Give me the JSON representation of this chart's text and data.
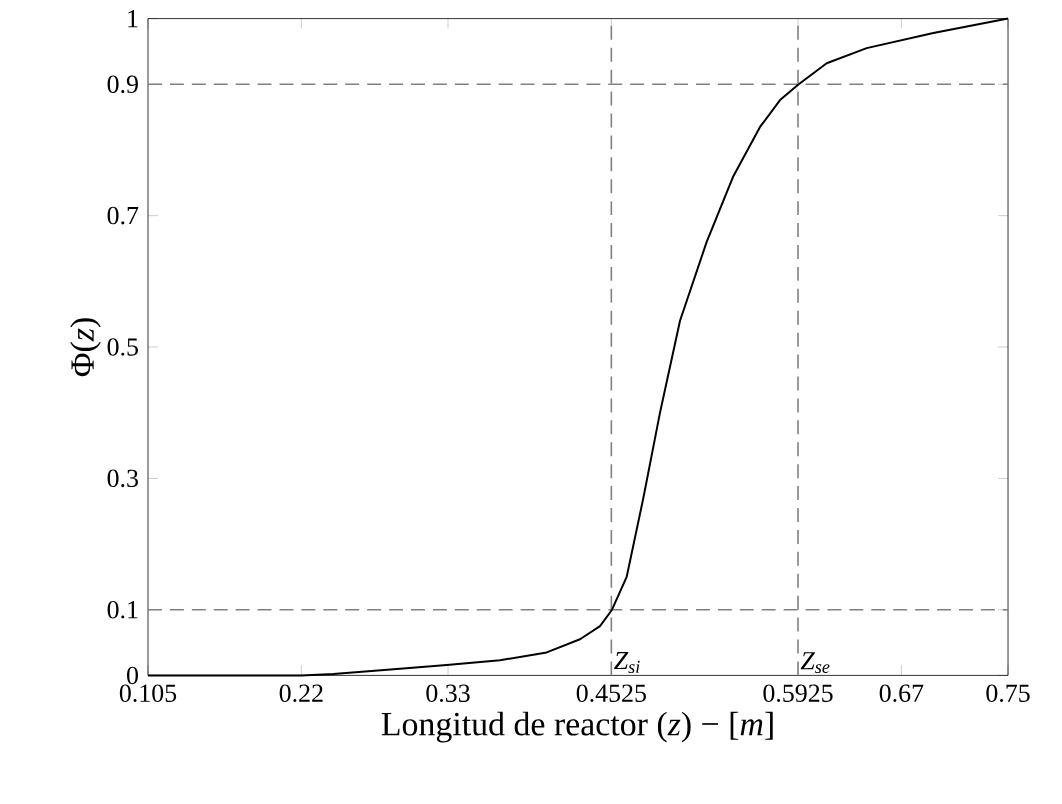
{
  "chart_data": {
    "type": "line",
    "xlabel": "Longitud de reactor (*z*) − [*m*]",
    "ylabel": "Φ(*z*)",
    "x": [
      0.105,
      0.22,
      0.244,
      0.294,
      0.329,
      0.369,
      0.404,
      0.429,
      0.444,
      0.453,
      0.464,
      0.4765,
      0.489,
      0.504,
      0.524,
      0.544,
      0.564,
      0.579,
      0.593,
      0.614,
      0.644,
      0.694,
      0.75
    ],
    "values": [
      0,
      0,
      0.002,
      0.01,
      0.016,
      0.023,
      0.035,
      0.055,
      0.075,
      0.1,
      0.15,
      0.27,
      0.4,
      0.54,
      0.66,
      0.76,
      0.835,
      0.876,
      0.9,
      0.932,
      0.955,
      0.978,
      1
    ],
    "color": "#000000",
    "line_style": "solid",
    "xlim": [
      0.105,
      0.75
    ],
    "ylim": [
      0,
      1
    ],
    "xticks": [
      0.105,
      0.22,
      0.33,
      0.4525,
      0.5925,
      0.67,
      0.75
    ],
    "yticks": [
      0,
      0.1,
      0.3,
      0.5,
      0.7,
      0.9,
      1
    ],
    "ref_lines": [
      {
        "axis": "y",
        "value": 0.1,
        "color": "#808080",
        "line_style": "dashed"
      },
      {
        "axis": "y",
        "value": 0.9,
        "color": "#808080",
        "line_style": "dashed"
      },
      {
        "axis": "x",
        "value": 0.4525,
        "label": "Z$_{si}$",
        "color": "#808080",
        "line_style": "dashed"
      },
      {
        "axis": "x",
        "value": 0.5925,
        "label": "Z$_{se}$",
        "color": "#808080",
        "line_style": "dashed"
      }
    ]
  }
}
